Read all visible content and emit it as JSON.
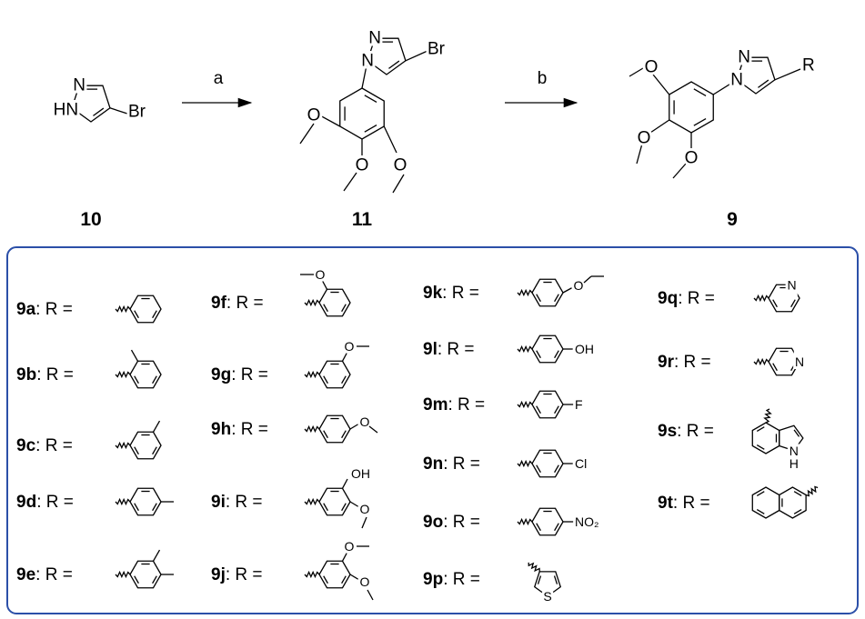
{
  "scheme": {
    "compounds": [
      {
        "label": "10",
        "atoms": [
          "N",
          "HN",
          "Br"
        ]
      },
      {
        "label": "11",
        "atoms": [
          "N",
          "N",
          "Br",
          "O",
          "O",
          "O"
        ]
      },
      {
        "label": "9",
        "atoms": [
          "N",
          "N",
          "R",
          "O",
          "O",
          "O"
        ]
      }
    ],
    "steps": [
      "a",
      "b"
    ]
  },
  "substituents": [
    {
      "id": "9a",
      "text": ": R =",
      "atoms": []
    },
    {
      "id": "9b",
      "text": ": R =",
      "atoms": []
    },
    {
      "id": "9c",
      "text": ": R =",
      "atoms": []
    },
    {
      "id": "9d",
      "text": ": R =",
      "atoms": []
    },
    {
      "id": "9e",
      "text": ": R =",
      "atoms": []
    },
    {
      "id": "9f",
      "text": ": R =",
      "atoms": [
        "O"
      ]
    },
    {
      "id": "9g",
      "text": ": R =",
      "atoms": [
        "O"
      ]
    },
    {
      "id": "9h",
      "text": ": R =",
      "atoms": [
        "O"
      ]
    },
    {
      "id": "9i",
      "text": ": R =",
      "atoms": [
        "OH",
        "O"
      ]
    },
    {
      "id": "9j",
      "text": ": R =",
      "atoms": [
        "O",
        "O"
      ]
    },
    {
      "id": "9k",
      "text": ": R =",
      "atoms": [
        "O"
      ]
    },
    {
      "id": "9l",
      "text": ": R =",
      "atoms": [
        "OH"
      ]
    },
    {
      "id": "9m",
      "text": ": R =",
      "atoms": [
        "F"
      ]
    },
    {
      "id": "9n",
      "text": ": R =",
      "atoms": [
        "Cl"
      ]
    },
    {
      "id": "9o",
      "text": ": R =",
      "atoms": [
        "NO₂"
      ]
    },
    {
      "id": "9p",
      "text": ": R =",
      "atoms": [
        "S"
      ]
    },
    {
      "id": "9q",
      "text": ": R =",
      "atoms": [
        "N"
      ]
    },
    {
      "id": "9r",
      "text": ": R =",
      "atoms": [
        "N"
      ]
    },
    {
      "id": "9s",
      "text": ": R =",
      "atoms": [
        "N",
        "H"
      ]
    },
    {
      "id": "9t",
      "text": ": R =",
      "atoms": []
    }
  ]
}
